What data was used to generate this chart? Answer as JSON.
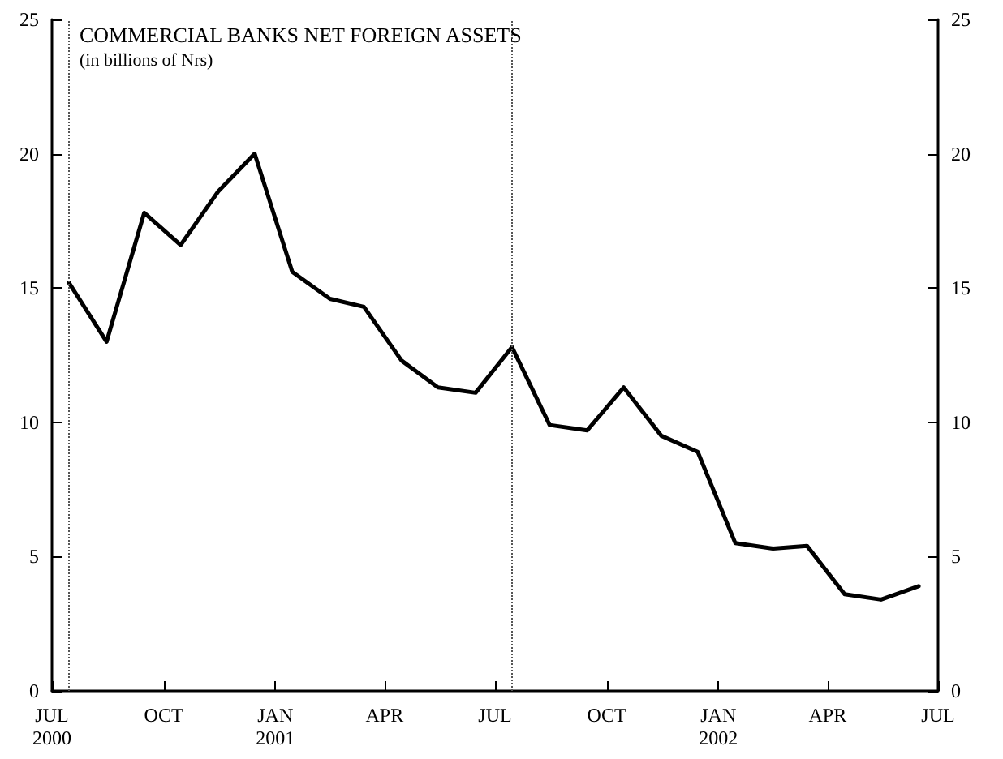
{
  "chart_data": {
    "type": "line",
    "title": "COMMERCIAL BANKS NET FOREIGN ASSETS",
    "subtitle": "(in billions of Nrs)",
    "x": [
      "2000-07-15",
      "2000-08-15",
      "2000-09-15",
      "2000-10-15",
      "2000-11-15",
      "2000-12-15",
      "2001-01-15",
      "2001-02-15",
      "2001-03-15",
      "2001-04-15",
      "2001-05-15",
      "2001-06-15",
      "2001-07-15",
      "2001-08-15",
      "2001-09-15",
      "2001-10-15",
      "2001-11-15",
      "2001-12-15",
      "2002-01-15",
      "2002-02-15",
      "2002-03-15",
      "2002-04-15",
      "2002-05-15",
      "2002-06-15"
    ],
    "series": [
      {
        "color": "#000000",
        "values": [
          15.2,
          13.0,
          17.8,
          16.6,
          18.6,
          20.0,
          15.6,
          14.6,
          14.3,
          12.3,
          11.3,
          11.1,
          12.8,
          9.9,
          9.7,
          11.3,
          9.5,
          8.9,
          5.5,
          5.3,
          5.4,
          3.6,
          3.4,
          3.9
        ]
      }
    ],
    "xlim": [
      "2000-07-01",
      "2002-07-01"
    ],
    "xticks": [
      {
        "value": "2000-07-01",
        "label": "JUL\n2000"
      },
      {
        "value": "2000-10-01",
        "label": "OCT"
      },
      {
        "value": "2001-01-01",
        "label": "JAN\n2001"
      },
      {
        "value": "2001-04-01",
        "label": "APR"
      },
      {
        "value": "2001-07-01",
        "label": "JUL"
      },
      {
        "value": "2001-10-01",
        "label": "OCT"
      },
      {
        "value": "2002-01-01",
        "label": "JAN\n2002"
      },
      {
        "value": "2002-04-01",
        "label": "APR"
      },
      {
        "value": "2002-07-01",
        "label": "JUL"
      }
    ],
    "ylim": [
      0,
      25
    ],
    "yticks": [
      0,
      5,
      10,
      15,
      20,
      25
    ],
    "y2lim": [
      0,
      25
    ],
    "y2ticks": [
      0,
      5,
      10,
      15,
      20,
      25
    ],
    "ref_lines": [
      {
        "axis": "x",
        "value": "2000-07-15",
        "color": "#555555",
        "line_style": "dotted"
      },
      {
        "axis": "x",
        "value": "2001-07-15",
        "color": "#555555",
        "line_style": "dotted"
      }
    ],
    "grid": false,
    "marker": "none",
    "line_style": "solid"
  }
}
